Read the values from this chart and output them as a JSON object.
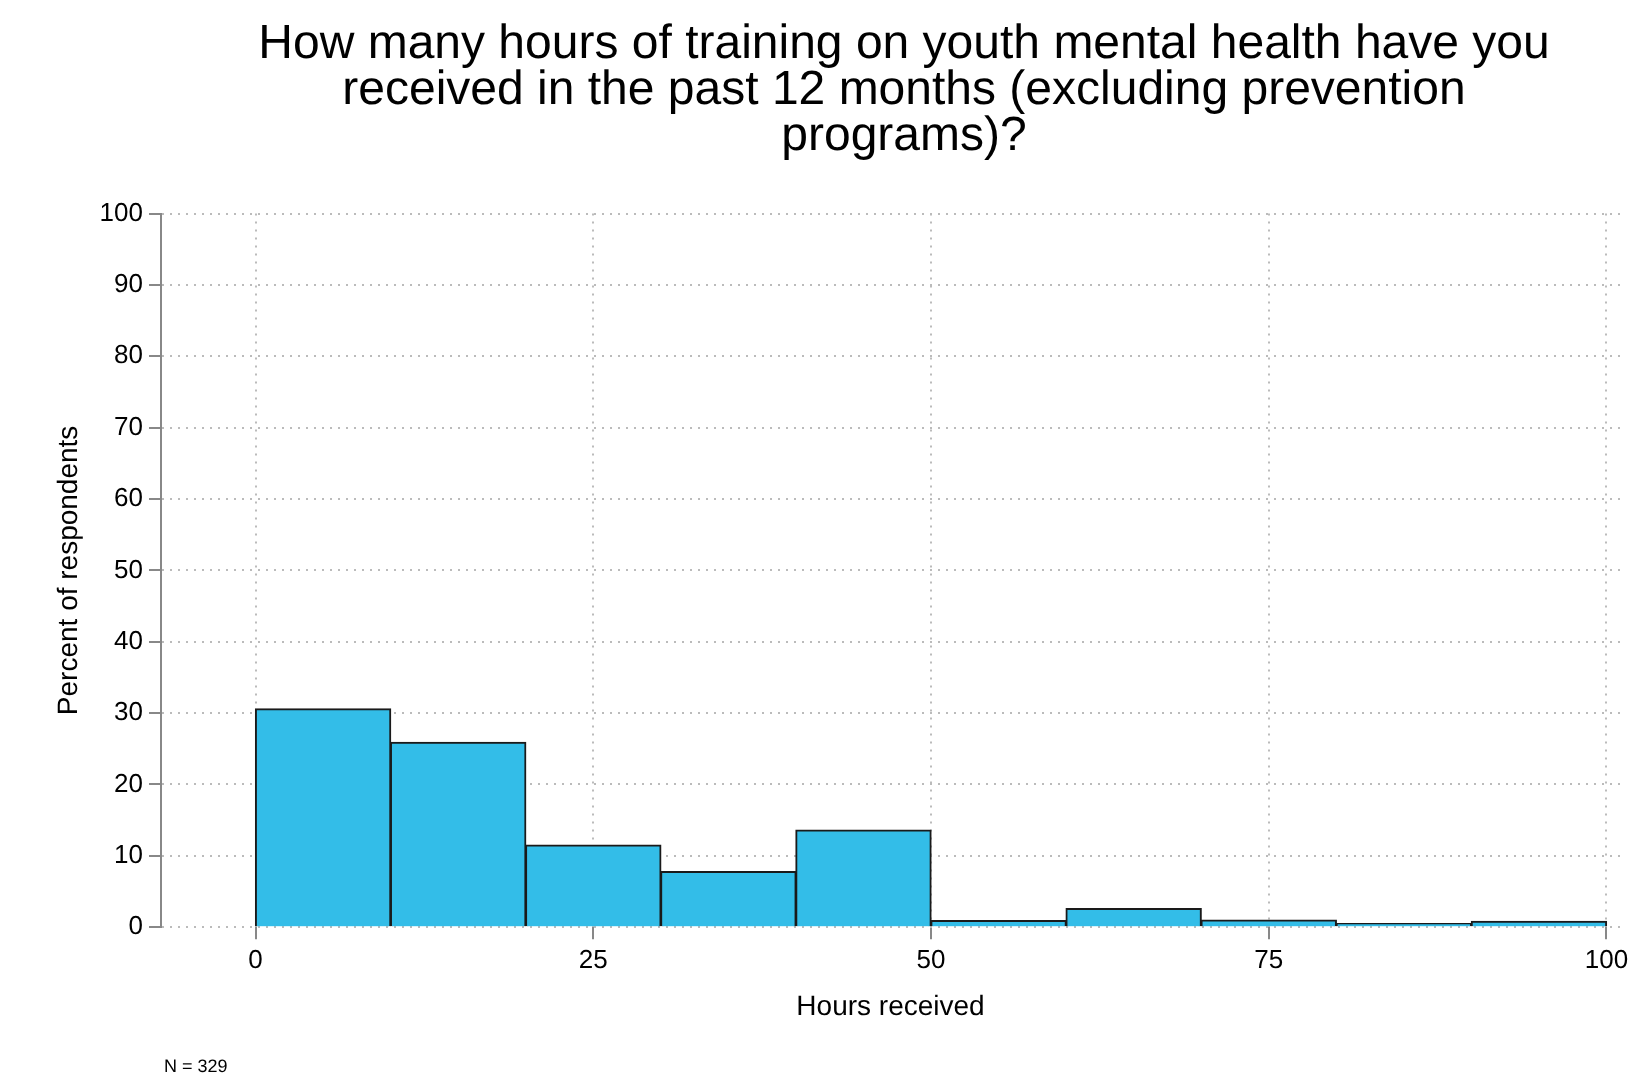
{
  "chart_data": {
    "type": "histogram",
    "title": "How many hours of training on youth mental health have you received in the past 12 months (excluding prevention programs)?",
    "xlabel": "Hours received",
    "ylabel": "Percent of respondents",
    "bins": [
      0,
      10,
      20,
      30,
      40,
      50,
      60,
      70,
      80,
      90,
      100
    ],
    "values": [
      30.6,
      25.9,
      11.5,
      7.8,
      13.6,
      0.9,
      2.6,
      1.0,
      0.5,
      0.8
    ],
    "color": "#33bde8",
    "xlim": [
      -7,
      101
    ],
    "xticks": [
      0,
      25,
      50,
      75,
      100
    ],
    "ylim": [
      0,
      100
    ],
    "yticks": [
      0,
      10,
      20,
      30,
      40,
      50,
      60,
      70,
      80,
      90,
      100
    ],
    "grid": true,
    "legend": false,
    "annotations": [
      "N = 329"
    ]
  }
}
